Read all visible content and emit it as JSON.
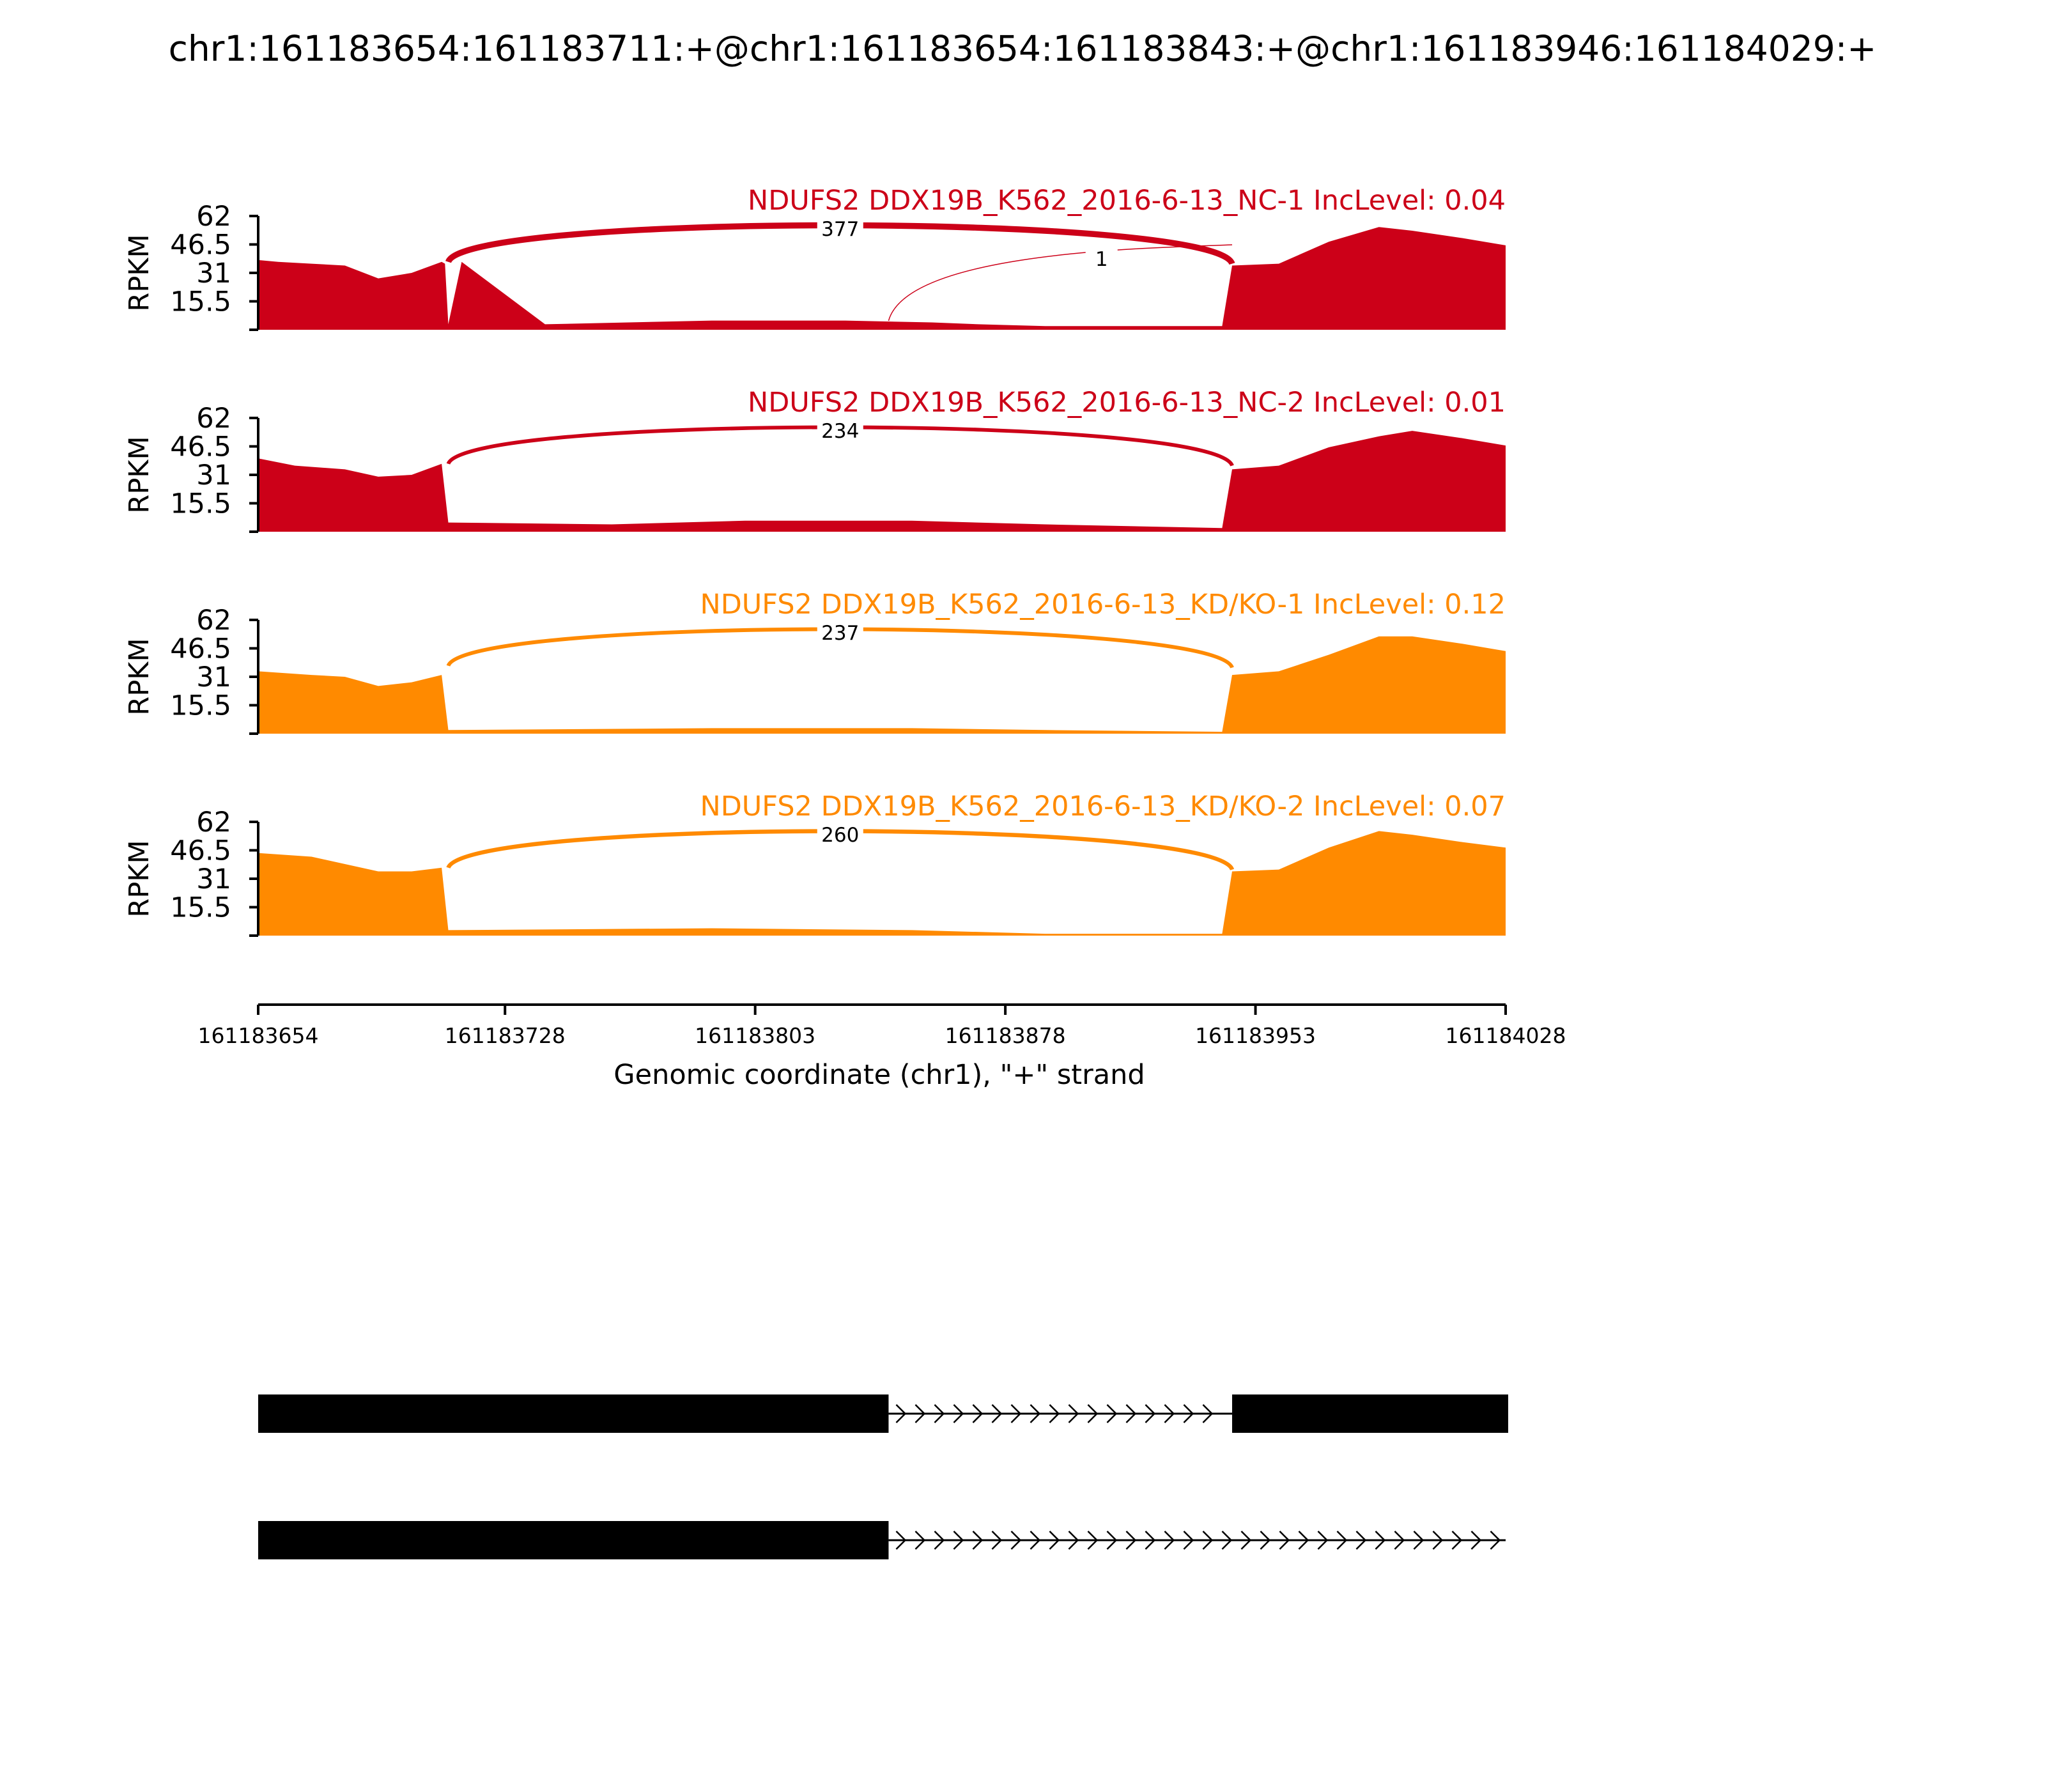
{
  "title": "chr1:161183654:161183711:+@chr1:161183654:161183843:+@chr1:161183946:161184029:+",
  "chart_data": {
    "type": "area",
    "xlabel": "Genomic coordinate (chr1), \"+\" strand",
    "xlim": [
      161183654,
      161184028
    ],
    "xticks": [
      "161183654",
      "161183728",
      "161183803",
      "161183878",
      "161183953",
      "161184028"
    ],
    "ylabel": "RPKM",
    "ylim": [
      0,
      62
    ],
    "yticks": [
      "62",
      "46.5",
      "31",
      "15.5"
    ],
    "colors": {
      "NC": "#cc0018",
      "KD": "#ff8a00"
    },
    "tracks": [
      {
        "label": "NDUFS2 DDX19B_K562_2016-6-13_NC-1 IncLevel: 0.04",
        "color": "#cc0018",
        "coverage": [
          [
            161183654,
            38
          ],
          [
            161183660,
            37
          ],
          [
            161183670,
            36
          ],
          [
            161183680,
            35
          ],
          [
            161183690,
            28
          ],
          [
            161183700,
            31
          ],
          [
            161183710,
            36
          ],
          [
            161183715,
            37
          ],
          [
            161183709,
            37
          ],
          [
            161183711,
            3
          ],
          [
            161183740,
            3
          ],
          [
            161183790,
            5
          ],
          [
            161183830,
            5
          ],
          [
            161183856,
            4
          ],
          [
            161183870,
            3
          ],
          [
            161183890,
            2
          ],
          [
            161183943,
            2
          ],
          [
            161183946,
            35
          ],
          [
            161183960,
            36
          ],
          [
            161183975,
            48
          ],
          [
            161183990,
            56
          ],
          [
            161184000,
            54
          ],
          [
            161184015,
            50
          ],
          [
            161184028,
            46
          ]
        ],
        "junctions": [
          {
            "label": "377",
            "start": 161183711,
            "end": 161183946,
            "count": 377,
            "side": "top"
          },
          {
            "label": "1",
            "start": 161183843,
            "end": 161183946,
            "count": 1,
            "side": "top"
          }
        ]
      },
      {
        "label": "NDUFS2 DDX19B_K562_2016-6-13_NC-2 IncLevel: 0.01",
        "color": "#cc0018",
        "coverage": [
          [
            161183654,
            40
          ],
          [
            161183665,
            36
          ],
          [
            161183680,
            34
          ],
          [
            161183690,
            30
          ],
          [
            161183700,
            31
          ],
          [
            161183709,
            37
          ],
          [
            161183711,
            5
          ],
          [
            161183760,
            4
          ],
          [
            161183800,
            6
          ],
          [
            161183850,
            6
          ],
          [
            161183890,
            4
          ],
          [
            161183943,
            2
          ],
          [
            161183946,
            34
          ],
          [
            161183960,
            36
          ],
          [
            161183975,
            46
          ],
          [
            161183990,
            52
          ],
          [
            161184000,
            55
          ],
          [
            161184015,
            51
          ],
          [
            161184028,
            47
          ]
        ],
        "junctions": [
          {
            "label": "234",
            "start": 161183711,
            "end": 161183946,
            "count": 234,
            "side": "top"
          }
        ]
      },
      {
        "label": "NDUFS2 DDX19B_K562_2016-6-13_KD/KO-1 IncLevel: 0.12",
        "color": "#ff8a00",
        "coverage": [
          [
            161183654,
            34
          ],
          [
            161183670,
            32
          ],
          [
            161183680,
            31
          ],
          [
            161183690,
            26
          ],
          [
            161183700,
            28
          ],
          [
            161183709,
            32
          ],
          [
            161183711,
            2
          ],
          [
            161183790,
            3
          ],
          [
            161183850,
            3
          ],
          [
            161183890,
            2
          ],
          [
            161183943,
            1
          ],
          [
            161183946,
            32
          ],
          [
            161183960,
            34
          ],
          [
            161183975,
            43
          ],
          [
            161183990,
            53
          ],
          [
            161184000,
            53
          ],
          [
            161184015,
            49
          ],
          [
            161184028,
            45
          ]
        ],
        "junctions": [
          {
            "label": "237",
            "start": 161183711,
            "end": 161183946,
            "count": 237,
            "side": "top"
          }
        ]
      },
      {
        "label": "NDUFS2 DDX19B_K562_2016-6-13_KD/KO-2 IncLevel: 0.07",
        "color": "#ff8a00",
        "coverage": [
          [
            161183654,
            45
          ],
          [
            161183670,
            43
          ],
          [
            161183680,
            39
          ],
          [
            161183690,
            35
          ],
          [
            161183700,
            35
          ],
          [
            161183709,
            37
          ],
          [
            161183711,
            3
          ],
          [
            161183790,
            4
          ],
          [
            161183850,
            3
          ],
          [
            161183890,
            1
          ],
          [
            161183943,
            1
          ],
          [
            161183946,
            35
          ],
          [
            161183960,
            36
          ],
          [
            161183975,
            48
          ],
          [
            161183990,
            57
          ],
          [
            161184000,
            55
          ],
          [
            161184015,
            51
          ],
          [
            161184028,
            48
          ]
        ],
        "junctions": [
          {
            "label": "260",
            "start": 161183711,
            "end": 161183946,
            "count": 260,
            "side": "top"
          }
        ]
      }
    ],
    "gene_models": [
      {
        "exons": [
          [
            161183654,
            161183843
          ],
          [
            161183946,
            161184029
          ]
        ],
        "strand": "+"
      },
      {
        "exons": [
          [
            161183654,
            161183843
          ]
        ],
        "strand": "+"
      }
    ]
  }
}
